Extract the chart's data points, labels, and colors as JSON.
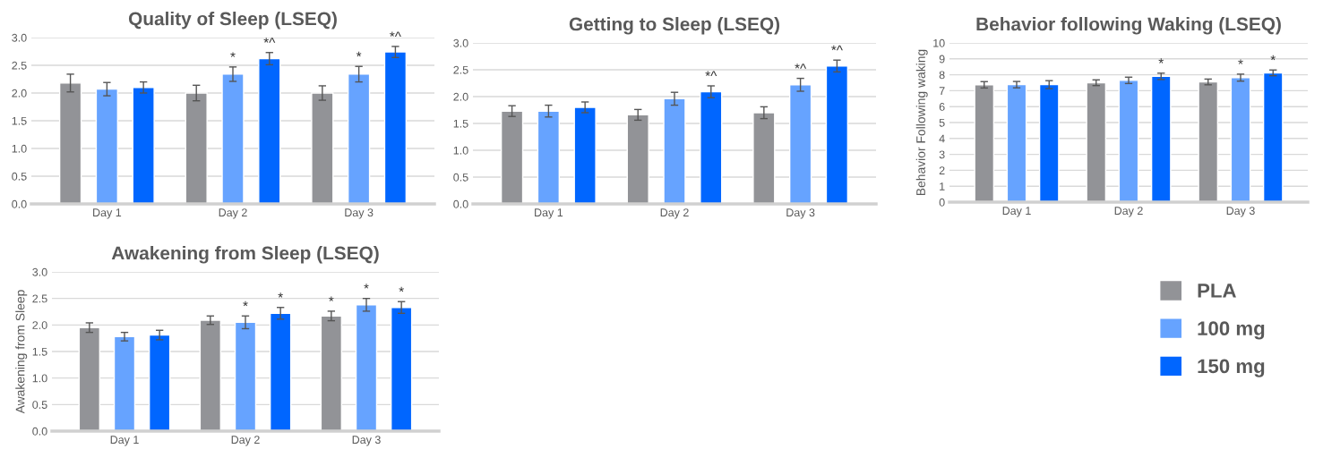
{
  "chart_data": [
    {
      "type": "bar",
      "title": "Quality of Sleep (LSEQ)",
      "categories": [
        "Day 1",
        "Day 2",
        "Day 3"
      ],
      "ylim": [
        0,
        3
      ],
      "yticks": [
        {
          "value": 0,
          "label": "0.0"
        },
        {
          "value": 0.5,
          "label": "0.5"
        },
        {
          "value": 1,
          "label": "1.0"
        },
        {
          "value": 1.5,
          "label": "1.5"
        },
        {
          "value": 2,
          "label": "2.0"
        },
        {
          "value": 2.5,
          "label": "2.5"
        },
        {
          "value": 3,
          "label": "3.0"
        }
      ],
      "grid": "y",
      "legend": false,
      "series": [
        {
          "color": "#929397",
          "values": [
            2.18,
            2.0,
            2.0
          ],
          "errors": [
            0.16,
            0.14,
            0.13
          ]
        },
        {
          "color": "#66a3ff",
          "values": [
            2.07,
            2.34,
            2.34
          ],
          "errors": [
            0.12,
            0.13,
            0.14
          ],
          "value_labels": [
            null,
            "*",
            "*"
          ]
        },
        {
          "color": "#0066ff",
          "values": [
            2.1,
            2.62,
            2.74
          ],
          "errors": [
            0.1,
            0.11,
            0.1
          ],
          "value_labels": [
            null,
            "*^",
            "*^"
          ]
        }
      ]
    },
    {
      "type": "bar",
      "title": "Getting to Sleep (LSEQ)",
      "categories": [
        "Day 1",
        "Day 2",
        "Day 3"
      ],
      "ylim": [
        0,
        3
      ],
      "yticks": [
        {
          "value": 0,
          "label": "0.0"
        },
        {
          "value": 0.5,
          "label": "0.5"
        },
        {
          "value": 1,
          "label": "1.0"
        },
        {
          "value": 1.5,
          "label": "1.5"
        },
        {
          "value": 2,
          "label": "2.0"
        },
        {
          "value": 2.5,
          "label": "2.5"
        },
        {
          "value": 3,
          "label": "3.0"
        }
      ],
      "grid": "y",
      "legend": false,
      "series": [
        {
          "color": "#929397",
          "values": [
            1.73,
            1.66,
            1.7
          ],
          "errors": [
            0.1,
            0.1,
            0.11
          ]
        },
        {
          "color": "#66a3ff",
          "values": [
            1.73,
            1.96,
            2.22
          ],
          "errors": [
            0.11,
            0.12,
            0.12
          ],
          "value_labels": [
            null,
            null,
            "*^"
          ]
        },
        {
          "color": "#0066ff",
          "values": [
            1.8,
            2.09,
            2.57
          ],
          "errors": [
            0.1,
            0.11,
            0.11
          ],
          "value_labels": [
            null,
            "*^",
            "*^"
          ]
        }
      ]
    },
    {
      "type": "bar",
      "title": "Behavior following Waking (LSEQ)",
      "ylabel": "Behavior Following waking",
      "categories": [
        "Day 1",
        "Day 2",
        "Day 3"
      ],
      "ylim": [
        0,
        10
      ],
      "yticks": [
        0,
        1,
        2,
        3,
        4,
        5,
        6,
        7,
        8,
        9,
        10
      ],
      "grid": "y",
      "legend": false,
      "series": [
        {
          "color": "#929397",
          "values": [
            7.37,
            7.5,
            7.55
          ],
          "errors": [
            0.2,
            0.18,
            0.18
          ]
        },
        {
          "color": "#66a3ff",
          "values": [
            7.38,
            7.65,
            7.82
          ],
          "errors": [
            0.2,
            0.2,
            0.22
          ],
          "value_labels": [
            null,
            null,
            "*"
          ]
        },
        {
          "color": "#0066ff",
          "values": [
            7.38,
            7.9,
            8.12
          ],
          "errors": [
            0.25,
            0.2,
            0.18
          ],
          "value_labels": [
            null,
            "*",
            "*"
          ]
        }
      ]
    },
    {
      "type": "bar",
      "title": "Awakening from Sleep (LSEQ)",
      "ylabel": "Awakening from Sleep",
      "categories": [
        "Day 1",
        "Day 2",
        "Day 3"
      ],
      "ylim": [
        0,
        3
      ],
      "yticks": [
        {
          "value": 0,
          "label": "0.0"
        },
        {
          "value": 0.5,
          "label": "0.5"
        },
        {
          "value": 1,
          "label": "1.0"
        },
        {
          "value": 1.5,
          "label": "1.5"
        },
        {
          "value": 2,
          "label": "2.0"
        },
        {
          "value": 2.5,
          "label": "2.5"
        },
        {
          "value": 3,
          "label": "3.0"
        }
      ],
      "grid": "y",
      "legend": "right",
      "series": [
        {
          "name": "PLA",
          "color": "#929397",
          "values": [
            1.95,
            2.09,
            2.17
          ],
          "errors": [
            0.09,
            0.08,
            0.09
          ],
          "value_labels": [
            null,
            null,
            "*"
          ]
        },
        {
          "name": "100 mg",
          "color": "#66a3ff",
          "values": [
            1.78,
            2.05,
            2.38
          ],
          "errors": [
            0.08,
            0.12,
            0.12
          ],
          "value_labels": [
            null,
            "*",
            "*"
          ]
        },
        {
          "name": "150 mg",
          "color": "#0066ff",
          "values": [
            1.81,
            2.22,
            2.33
          ],
          "errors": [
            0.09,
            0.11,
            0.11
          ],
          "value_labels": [
            null,
            "*",
            "*"
          ]
        }
      ]
    }
  ]
}
